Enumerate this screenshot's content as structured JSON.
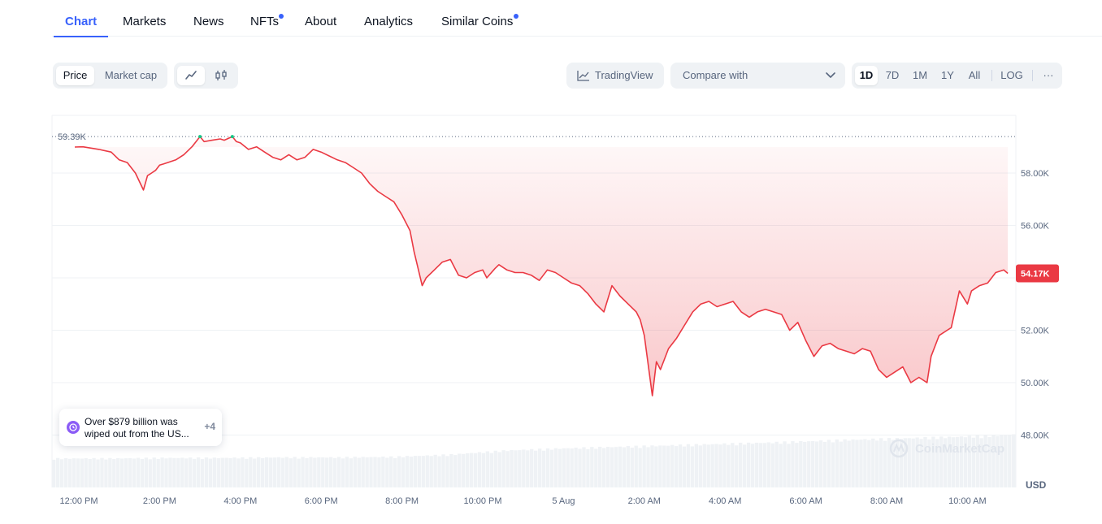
{
  "tabs": [
    {
      "label": "Chart",
      "active": true,
      "dot": false
    },
    {
      "label": "Markets",
      "active": false,
      "dot": false
    },
    {
      "label": "News",
      "active": false,
      "dot": false
    },
    {
      "label": "NFTs",
      "active": false,
      "dot": true
    },
    {
      "label": "About",
      "active": false,
      "dot": false
    },
    {
      "label": "Analytics",
      "active": false,
      "dot": false
    },
    {
      "label": "Similar Coins",
      "active": false,
      "dot": true
    }
  ],
  "toolbar": {
    "price_label": "Price",
    "marketcap_label": "Market cap",
    "line_icon": "line-chart-icon",
    "candle_icon": "candlestick-icon",
    "tradingview_label": "TradingView",
    "compare_label": "Compare with",
    "ranges": [
      "1D",
      "7D",
      "1M",
      "1Y",
      "All"
    ],
    "active_range": "1D",
    "log_label": "LOG",
    "more_label": "···"
  },
  "news": {
    "text": "Over $879 billion was wiped out from the US...",
    "count": "+4"
  },
  "colors": {
    "accent": "#3861fb",
    "line": "#ea3943",
    "high_marker": "#16c784",
    "area_fill": "#ea3943",
    "grid": "#eff2f5"
  },
  "chart_data": {
    "type": "area",
    "y_unit_label": "USD",
    "y_ticks": [
      "58.00K",
      "56.00K",
      "54.00K",
      "52.00K",
      "50.00K",
      "48.00K"
    ],
    "y_tick_values": [
      58000,
      56000,
      54000,
      52000,
      50000,
      48000
    ],
    "ylim": [
      46000,
      60200
    ],
    "x_tick_labels": [
      "12:00 PM",
      "2:00 PM",
      "4:00 PM",
      "6:00 PM",
      "8:00 PM",
      "10:00 PM",
      "5 Aug",
      "2:00 AM",
      "4:00 AM",
      "6:00 AM",
      "8:00 AM",
      "10:00 AM"
    ],
    "x_tick_hours": [
      0,
      2,
      4,
      6,
      8,
      10,
      12,
      14,
      16,
      18,
      20,
      22
    ],
    "xlim_hours": [
      0,
      23.1
    ],
    "high_label": "59.39K",
    "high_value": 59390,
    "current_label": "54.17K",
    "current_value": 54170,
    "grid": true,
    "watermark": "CoinMarketCap",
    "series": [
      {
        "x_hours": [
          -0.1,
          0.1,
          0.3,
          0.5,
          0.8,
          1.0,
          1.2,
          1.4,
          1.6,
          1.7,
          1.8,
          1.9,
          2.0,
          2.1,
          2.2,
          2.4,
          2.6,
          2.8,
          3.0,
          3.1,
          3.3,
          3.5,
          3.6,
          3.8,
          3.9,
          4.0,
          4.2,
          4.4,
          4.6,
          4.8,
          5.0,
          5.2,
          5.4,
          5.6,
          5.8,
          6.0,
          6.2,
          6.4,
          6.6,
          6.8,
          7.0,
          7.2,
          7.4,
          7.6,
          7.8,
          8.0,
          8.2,
          8.3,
          8.5,
          8.6,
          8.8,
          9.0,
          9.2,
          9.3,
          9.4,
          9.6,
          9.8,
          10.0,
          10.1,
          10.3,
          10.4,
          10.6,
          10.8,
          11.0,
          11.2,
          11.4,
          11.6,
          11.8,
          12.0,
          12.2,
          12.4,
          12.6,
          12.8,
          13.0,
          13.2,
          13.4,
          13.6,
          13.8,
          13.9,
          14.0,
          14.2,
          14.3,
          14.4,
          14.6,
          14.8,
          15.0,
          15.2,
          15.4,
          15.6,
          15.8,
          16.0,
          16.2,
          16.4,
          16.6,
          16.8,
          17.0,
          17.2,
          17.4,
          17.6,
          17.8,
          18.0,
          18.2,
          18.4,
          18.6,
          18.8,
          19.0,
          19.2,
          19.4,
          19.6,
          19.8,
          20.0,
          20.2,
          20.4,
          20.6,
          20.8,
          21.0,
          21.1,
          21.3,
          21.5,
          21.6,
          21.8,
          22.0,
          22.1,
          22.3,
          22.5,
          22.7,
          22.9,
          23.0
        ],
        "values": [
          58990,
          59000,
          58950,
          58900,
          58800,
          58500,
          58400,
          58000,
          57350,
          57900,
          58000,
          58100,
          58300,
          58350,
          58400,
          58500,
          58700,
          59000,
          59390,
          59200,
          59250,
          59300,
          59250,
          59390,
          59200,
          59150,
          58900,
          59000,
          58800,
          58600,
          58500,
          58700,
          58500,
          58600,
          58900,
          58800,
          58650,
          58500,
          58400,
          58200,
          58000,
          57600,
          57300,
          57100,
          56900,
          56400,
          55800,
          55000,
          53700,
          54000,
          54300,
          54600,
          54700,
          54400,
          54100,
          54000,
          54200,
          54300,
          54000,
          54350,
          54500,
          54300,
          54200,
          54200,
          54100,
          53900,
          54300,
          54200,
          54000,
          53800,
          53700,
          53400,
          53000,
          52700,
          53700,
          53300,
          53000,
          52700,
          52400,
          51800,
          49500,
          50800,
          50500,
          51300,
          51700,
          52200,
          52700,
          53000,
          53100,
          52900,
          53000,
          53100,
          52700,
          52500,
          52700,
          52800,
          52700,
          52600,
          52000,
          52300,
          51600,
          51000,
          51400,
          51500,
          51300,
          51200,
          51100,
          51300,
          51200,
          50500,
          50200,
          50400,
          50600,
          50000,
          50200,
          50000,
          51000,
          51800,
          52000,
          52100,
          53500,
          53000,
          53500,
          53700,
          53800,
          54200,
          54300,
          54170
        ]
      }
    ],
    "volume_relative": [
      0.55,
      0.55,
      0.56,
      0.56,
      0.57,
      0.57,
      0.58,
      0.62,
      0.7,
      0.74,
      0.77,
      0.8,
      0.83,
      0.86,
      0.9,
      0.93,
      0.96,
      1.0
    ]
  }
}
